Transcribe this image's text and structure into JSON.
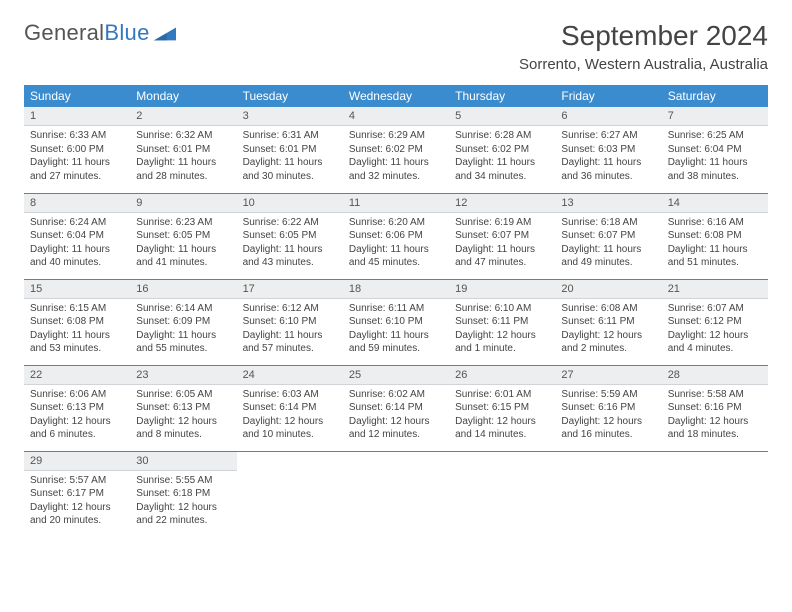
{
  "logo": {
    "word1": "General",
    "word2": "Blue"
  },
  "title": "September 2024",
  "location": "Sorrento, Western Australia, Australia",
  "colors": {
    "header_bg": "#3b8bcf",
    "header_text": "#ffffff",
    "daynum_bg": "#eceeef",
    "row_border": "#3b8bcf",
    "body_text": "#444444",
    "logo_blue": "#3478bd"
  },
  "weekdays": [
    "Sunday",
    "Monday",
    "Tuesday",
    "Wednesday",
    "Thursday",
    "Friday",
    "Saturday"
  ],
  "weeks": [
    [
      {
        "day": "1",
        "sunrise": "Sunrise: 6:33 AM",
        "sunset": "Sunset: 6:00 PM",
        "daylight": "Daylight: 11 hours and 27 minutes."
      },
      {
        "day": "2",
        "sunrise": "Sunrise: 6:32 AM",
        "sunset": "Sunset: 6:01 PM",
        "daylight": "Daylight: 11 hours and 28 minutes."
      },
      {
        "day": "3",
        "sunrise": "Sunrise: 6:31 AM",
        "sunset": "Sunset: 6:01 PM",
        "daylight": "Daylight: 11 hours and 30 minutes."
      },
      {
        "day": "4",
        "sunrise": "Sunrise: 6:29 AM",
        "sunset": "Sunset: 6:02 PM",
        "daylight": "Daylight: 11 hours and 32 minutes."
      },
      {
        "day": "5",
        "sunrise": "Sunrise: 6:28 AM",
        "sunset": "Sunset: 6:02 PM",
        "daylight": "Daylight: 11 hours and 34 minutes."
      },
      {
        "day": "6",
        "sunrise": "Sunrise: 6:27 AM",
        "sunset": "Sunset: 6:03 PM",
        "daylight": "Daylight: 11 hours and 36 minutes."
      },
      {
        "day": "7",
        "sunrise": "Sunrise: 6:25 AM",
        "sunset": "Sunset: 6:04 PM",
        "daylight": "Daylight: 11 hours and 38 minutes."
      }
    ],
    [
      {
        "day": "8",
        "sunrise": "Sunrise: 6:24 AM",
        "sunset": "Sunset: 6:04 PM",
        "daylight": "Daylight: 11 hours and 40 minutes."
      },
      {
        "day": "9",
        "sunrise": "Sunrise: 6:23 AM",
        "sunset": "Sunset: 6:05 PM",
        "daylight": "Daylight: 11 hours and 41 minutes."
      },
      {
        "day": "10",
        "sunrise": "Sunrise: 6:22 AM",
        "sunset": "Sunset: 6:05 PM",
        "daylight": "Daylight: 11 hours and 43 minutes."
      },
      {
        "day": "11",
        "sunrise": "Sunrise: 6:20 AM",
        "sunset": "Sunset: 6:06 PM",
        "daylight": "Daylight: 11 hours and 45 minutes."
      },
      {
        "day": "12",
        "sunrise": "Sunrise: 6:19 AM",
        "sunset": "Sunset: 6:07 PM",
        "daylight": "Daylight: 11 hours and 47 minutes."
      },
      {
        "day": "13",
        "sunrise": "Sunrise: 6:18 AM",
        "sunset": "Sunset: 6:07 PM",
        "daylight": "Daylight: 11 hours and 49 minutes."
      },
      {
        "day": "14",
        "sunrise": "Sunrise: 6:16 AM",
        "sunset": "Sunset: 6:08 PM",
        "daylight": "Daylight: 11 hours and 51 minutes."
      }
    ],
    [
      {
        "day": "15",
        "sunrise": "Sunrise: 6:15 AM",
        "sunset": "Sunset: 6:08 PM",
        "daylight": "Daylight: 11 hours and 53 minutes."
      },
      {
        "day": "16",
        "sunrise": "Sunrise: 6:14 AM",
        "sunset": "Sunset: 6:09 PM",
        "daylight": "Daylight: 11 hours and 55 minutes."
      },
      {
        "day": "17",
        "sunrise": "Sunrise: 6:12 AM",
        "sunset": "Sunset: 6:10 PM",
        "daylight": "Daylight: 11 hours and 57 minutes."
      },
      {
        "day": "18",
        "sunrise": "Sunrise: 6:11 AM",
        "sunset": "Sunset: 6:10 PM",
        "daylight": "Daylight: 11 hours and 59 minutes."
      },
      {
        "day": "19",
        "sunrise": "Sunrise: 6:10 AM",
        "sunset": "Sunset: 6:11 PM",
        "daylight": "Daylight: 12 hours and 1 minute."
      },
      {
        "day": "20",
        "sunrise": "Sunrise: 6:08 AM",
        "sunset": "Sunset: 6:11 PM",
        "daylight": "Daylight: 12 hours and 2 minutes."
      },
      {
        "day": "21",
        "sunrise": "Sunrise: 6:07 AM",
        "sunset": "Sunset: 6:12 PM",
        "daylight": "Daylight: 12 hours and 4 minutes."
      }
    ],
    [
      {
        "day": "22",
        "sunrise": "Sunrise: 6:06 AM",
        "sunset": "Sunset: 6:13 PM",
        "daylight": "Daylight: 12 hours and 6 minutes."
      },
      {
        "day": "23",
        "sunrise": "Sunrise: 6:05 AM",
        "sunset": "Sunset: 6:13 PM",
        "daylight": "Daylight: 12 hours and 8 minutes."
      },
      {
        "day": "24",
        "sunrise": "Sunrise: 6:03 AM",
        "sunset": "Sunset: 6:14 PM",
        "daylight": "Daylight: 12 hours and 10 minutes."
      },
      {
        "day": "25",
        "sunrise": "Sunrise: 6:02 AM",
        "sunset": "Sunset: 6:14 PM",
        "daylight": "Daylight: 12 hours and 12 minutes."
      },
      {
        "day": "26",
        "sunrise": "Sunrise: 6:01 AM",
        "sunset": "Sunset: 6:15 PM",
        "daylight": "Daylight: 12 hours and 14 minutes."
      },
      {
        "day": "27",
        "sunrise": "Sunrise: 5:59 AM",
        "sunset": "Sunset: 6:16 PM",
        "daylight": "Daylight: 12 hours and 16 minutes."
      },
      {
        "day": "28",
        "sunrise": "Sunrise: 5:58 AM",
        "sunset": "Sunset: 6:16 PM",
        "daylight": "Daylight: 12 hours and 18 minutes."
      }
    ],
    [
      {
        "day": "29",
        "sunrise": "Sunrise: 5:57 AM",
        "sunset": "Sunset: 6:17 PM",
        "daylight": "Daylight: 12 hours and 20 minutes."
      },
      {
        "day": "30",
        "sunrise": "Sunrise: 5:55 AM",
        "sunset": "Sunset: 6:18 PM",
        "daylight": "Daylight: 12 hours and 22 minutes."
      },
      null,
      null,
      null,
      null,
      null
    ]
  ]
}
